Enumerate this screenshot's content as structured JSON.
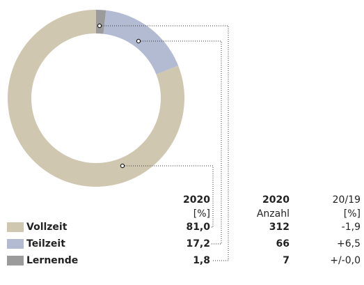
{
  "chart_data": {
    "type": "pie",
    "donut": true,
    "categories": [
      "Vollzeit",
      "Teilzeit",
      "Lernende"
    ],
    "values": [
      81.0,
      17.2,
      1.8
    ],
    "value_labels": [
      "81,0",
      "17,2",
      "1,8"
    ],
    "colors": [
      "#cfc7b0",
      "#b3bbd2",
      "#9b9b9b"
    ],
    "columns": [
      {
        "year": "2020",
        "unit": "[%]"
      },
      {
        "year": "2020",
        "unit": "Anzahl"
      },
      {
        "year": "20/19",
        "unit": "[%]"
      }
    ],
    "counts": [
      312,
      66,
      7
    ],
    "changes": [
      -1.9,
      6.5,
      0.0
    ],
    "change_labels": [
      "-1,9",
      "+6,5",
      "+/-0,0"
    ]
  }
}
